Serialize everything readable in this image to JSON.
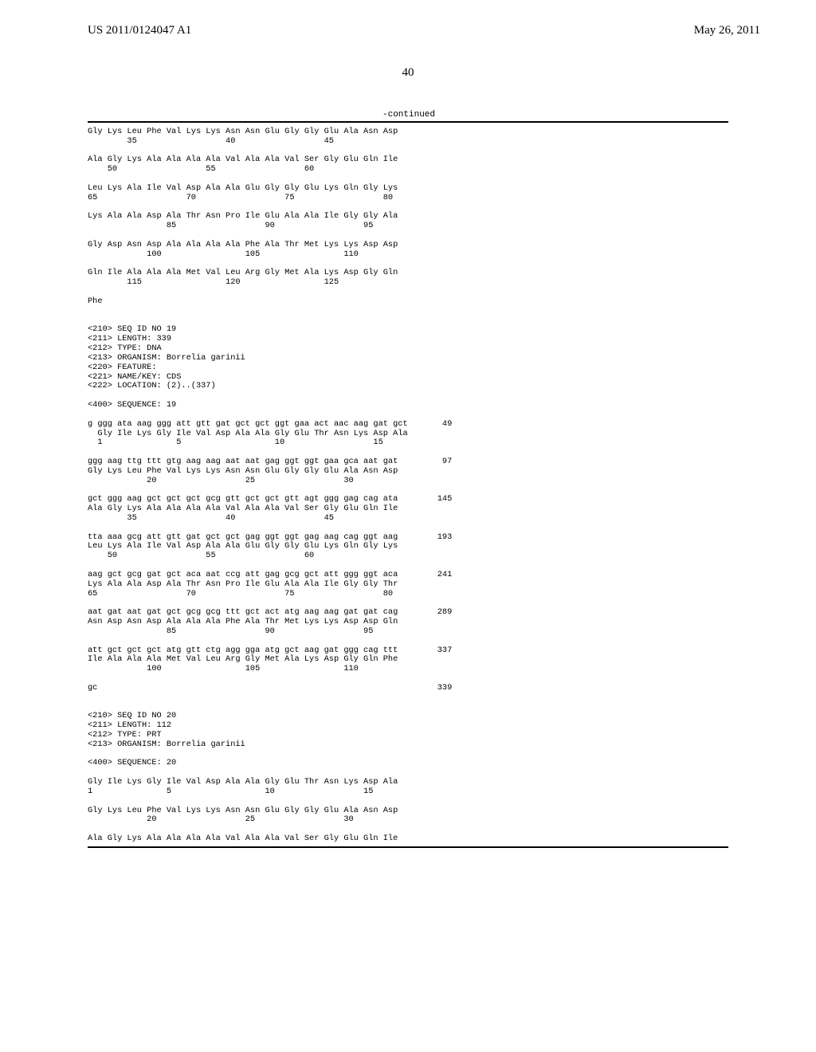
{
  "header": {
    "publication_number": "US 2011/0124047 A1",
    "publication_date": "May 26, 2011"
  },
  "page_number": "40",
  "continued_label": "-continued",
  "sequence_body": "Gly Lys Leu Phe Val Lys Lys Asn Asn Glu Gly Gly Glu Ala Asn Asp\n        35                  40                  45\n\nAla Gly Lys Ala Ala Ala Ala Val Ala Ala Val Ser Gly Glu Gln Ile\n    50                  55                  60\n\nLeu Lys Ala Ile Val Asp Ala Ala Glu Gly Gly Glu Lys Gln Gly Lys\n65                  70                  75                  80\n\nLys Ala Ala Asp Ala Thr Asn Pro Ile Glu Ala Ala Ile Gly Gly Ala\n                85                  90                  95\n\nGly Asp Asn Asp Ala Ala Ala Ala Phe Ala Thr Met Lys Lys Asp Asp\n            100                 105                 110\n\nGln Ile Ala Ala Ala Met Val Leu Arg Gly Met Ala Lys Asp Gly Gln\n        115                 120                 125\n\nPhe\n\n\n<210> SEQ ID NO 19\n<211> LENGTH: 339\n<212> TYPE: DNA\n<213> ORGANISM: Borrelia garinii\n<220> FEATURE:\n<221> NAME/KEY: CDS\n<222> LOCATION: (2)..(337)\n\n<400> SEQUENCE: 19\n\ng ggg ata aag ggg att gtt gat gct gct ggt gaa act aac aag gat gct       49\n  Gly Ile Lys Gly Ile Val Asp Ala Ala Gly Glu Thr Asn Lys Asp Ala\n  1               5                   10                  15\n\nggg aag ttg ttt gtg aag aag aat aat gag ggt ggt gaa gca aat gat         97\nGly Lys Leu Phe Val Lys Lys Asn Asn Glu Gly Gly Glu Ala Asn Asp\n            20                  25                  30\n\ngct ggg aag gct gct gct gcg gtt gct gct gtt agt ggg gag cag ata        145\nAla Gly Lys Ala Ala Ala Ala Val Ala Ala Val Ser Gly Glu Gln Ile\n        35                  40                  45\n\ntta aaa gcg att gtt gat gct gct gag ggt ggt gag aag cag ggt aag        193\nLeu Lys Ala Ile Val Asp Ala Ala Glu Gly Gly Glu Lys Gln Gly Lys\n    50                  55                  60\n\naag gct gcg gat gct aca aat ccg att gag gcg gct att ggg ggt aca        241\nLys Ala Ala Asp Ala Thr Asn Pro Ile Glu Ala Ala Ile Gly Gly Thr\n65                  70                  75                  80\n\naat gat aat gat gct gcg gcg ttt gct act atg aag aag gat gat cag        289\nAsn Asp Asn Asp Ala Ala Ala Phe Ala Thr Met Lys Lys Asp Asp Gln\n                85                  90                  95\n\natt gct gct gct atg gtt ctg agg gga atg gct aag gat ggg cag ttt        337\nIle Ala Ala Ala Met Val Leu Arg Gly Met Ala Lys Asp Gly Gln Phe\n            100                 105                 110\n\ngc                                                                     339\n\n\n<210> SEQ ID NO 20\n<211> LENGTH: 112\n<212> TYPE: PRT\n<213> ORGANISM: Borrelia garinii\n\n<400> SEQUENCE: 20\n\nGly Ile Lys Gly Ile Val Asp Ala Ala Gly Glu Thr Asn Lys Asp Ala\n1               5                   10                  15\n\nGly Lys Leu Phe Val Lys Lys Asn Asn Glu Gly Gly Glu Ala Asn Asp\n            20                  25                  30\n\nAla Gly Lys Ala Ala Ala Ala Val Ala Ala Val Ser Gly Glu Gln Ile"
}
